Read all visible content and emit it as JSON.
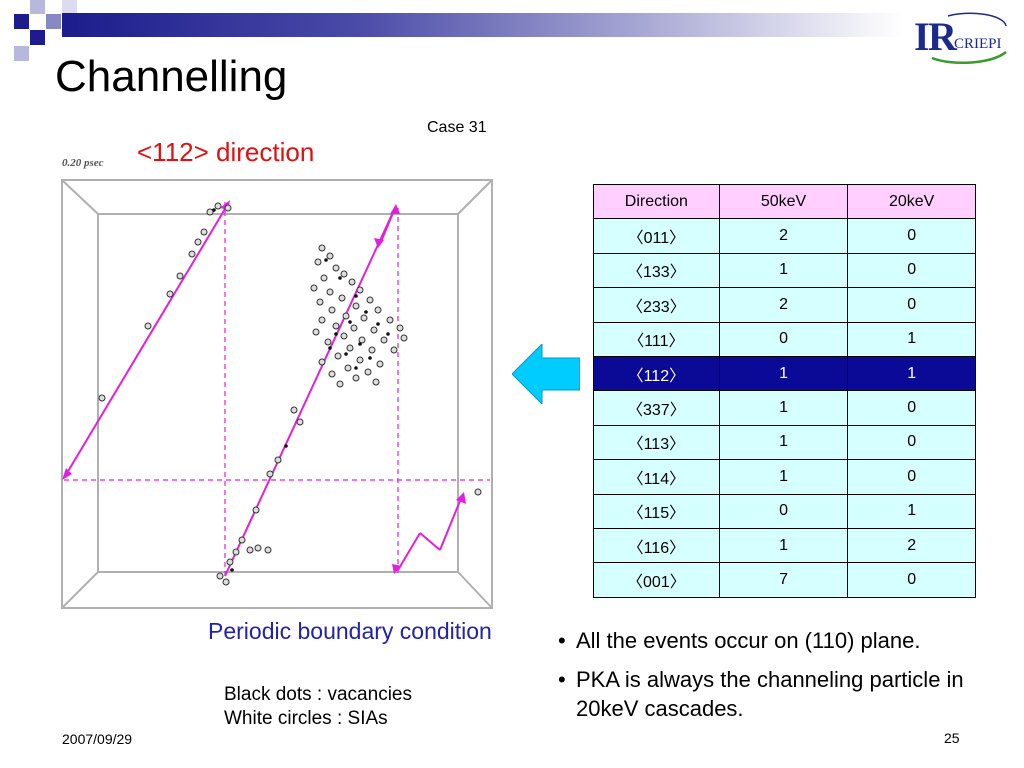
{
  "slide": {
    "title": "Channelling",
    "case_label": "Case 31",
    "direction_label": "<112> direction",
    "time_label": "0.20 psec",
    "pbc_label": "Periodic boundary condition",
    "legend": [
      "Black dots : vacancies",
      "White circles : SIAs"
    ],
    "date": "2007/09/29",
    "page_number": "25",
    "logo_text": "CRIEPI",
    "colors": {
      "accent_blue": "#1c1c8c",
      "trajectory": "#e020e0",
      "arrow": "#00ccff",
      "highlight": "#0a0a96"
    }
  },
  "table": {
    "headers": [
      "Direction",
      "50keV",
      "20keV"
    ],
    "rows": [
      [
        "〈011〉",
        "2",
        "0"
      ],
      [
        "〈133〉",
        "1",
        "0"
      ],
      [
        "〈233〉",
        "2",
        "0"
      ],
      [
        "〈111〉",
        "0",
        "1"
      ],
      [
        "〈112〉",
        "1",
        "1"
      ],
      [
        "〈337〉",
        "1",
        "0"
      ],
      [
        "〈113〉",
        "1",
        "0"
      ],
      [
        "〈114〉",
        "1",
        "0"
      ],
      [
        "〈115〉",
        "0",
        "1"
      ],
      [
        "〈116〉",
        "1",
        "2"
      ],
      [
        "〈001〉",
        "7",
        "0"
      ]
    ],
    "highlighted_row": 4
  },
  "bullets": [
    "All the events occur on (110) plane.",
    "PKA is always the channeling particle in 20keV cascades."
  ]
}
